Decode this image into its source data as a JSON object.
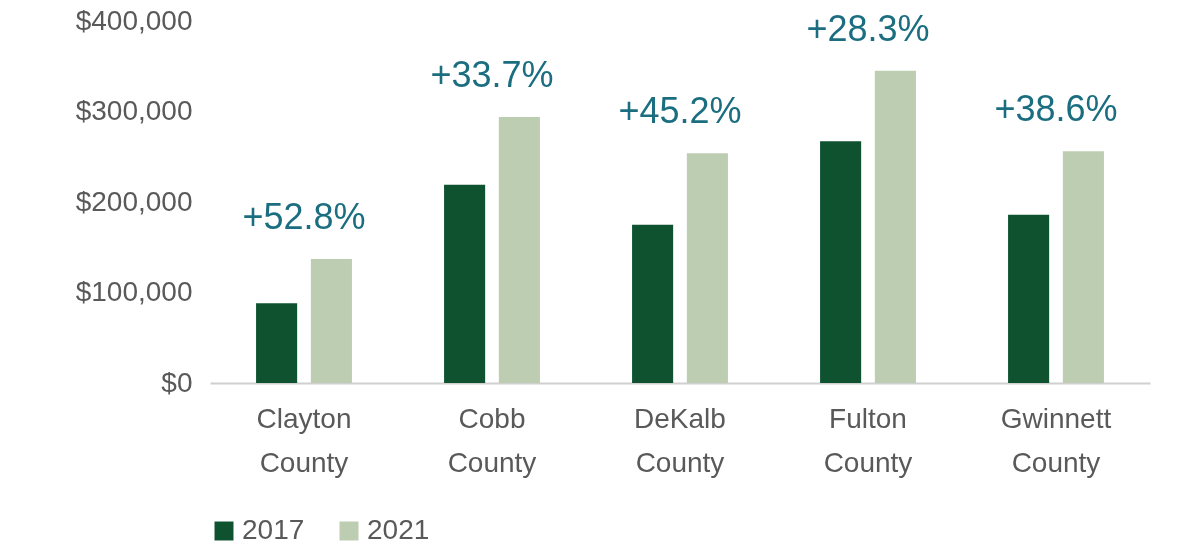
{
  "chart_data": {
    "type": "bar",
    "categories": [
      "Clayton County",
      "Cobb County",
      "DeKalb County",
      "Fulton County",
      "Gwinnett County"
    ],
    "series": [
      {
        "name": "2017",
        "color": "#0f5230",
        "values": [
          88000,
          219000,
          175000,
          267000,
          186000
        ]
      },
      {
        "name": "2021",
        "color": "#bccdb1",
        "values": [
          137000,
          294000,
          254000,
          345000,
          256000
        ]
      }
    ],
    "ylim": [
      0,
      400000
    ],
    "yticks": [
      {
        "value": 0,
        "label": "$0"
      },
      {
        "value": 100000,
        "label": "$100,000"
      },
      {
        "value": 200000,
        "label": "$200,000"
      },
      {
        "value": 300000,
        "label": "$300,000"
      },
      {
        "value": 400000,
        "label": "$400,000"
      }
    ],
    "annotations": [
      "+52.8%",
      "+33.7%",
      "+45.2%",
      "+28.3%",
      "+38.6%"
    ],
    "legend": "bottom",
    "grid": false
  }
}
